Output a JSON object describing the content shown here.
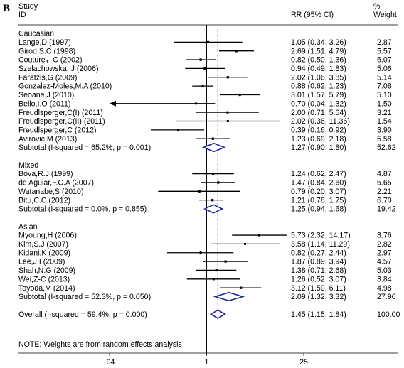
{
  "panel_label": "B",
  "chart_data": {
    "type": "forest",
    "header": {
      "study": "Study",
      "id": "ID",
      "estimate": "RR (95% CI)",
      "weight_pct": "%",
      "weight": "Weight"
    },
    "x_scale": "log",
    "x_ticks": [
      {
        "value": 0.04,
        "label": ".04"
      },
      {
        "value": 1,
        "label": "1"
      },
      {
        "value": 25,
        "label": "25"
      }
    ],
    "null_line": 1,
    "overall_line": 1.45,
    "rows": [
      {
        "kind": "header",
        "label": "Caucasian"
      },
      {
        "kind": "study",
        "label": "Lange,D (1997)",
        "est": 1.05,
        "lo": 0.34,
        "hi": 3.26,
        "weight": 2.87,
        "text": "1.05 (0.34, 3.26)",
        "wtext": "2.87"
      },
      {
        "kind": "study",
        "label": "Girod,S.C (1998)",
        "est": 2.69,
        "lo": 1.51,
        "hi": 4.79,
        "weight": 5.57,
        "text": "2.69 (1.51, 4.79)",
        "wtext": "5.57"
      },
      {
        "kind": "study",
        "label": "Couture，C (2002)",
        "est": 0.82,
        "lo": 0.5,
        "hi": 1.36,
        "weight": 6.07,
        "text": "0.82 (0.50, 1.36)",
        "wtext": "6.07"
      },
      {
        "kind": "study",
        "label": "Szelachowska, J (2006)",
        "est": 0.94,
        "lo": 0.49,
        "hi": 1.83,
        "weight": 5.06,
        "text": "0.94 (0.49, 1.83)",
        "wtext": "5.06"
      },
      {
        "kind": "study",
        "label": "Faratzis,G (2009)",
        "est": 2.02,
        "lo": 1.06,
        "hi": 3.85,
        "weight": 5.14,
        "text": "2.02 (1.06, 3.85)",
        "wtext": "5.14"
      },
      {
        "kind": "study",
        "label": "Gonzalez-Moles,M.A (2010)",
        "est": 0.88,
        "lo": 0.62,
        "hi": 1.23,
        "weight": 7.08,
        "text": "0.88 (0.62, 1.23)",
        "wtext": "7.08"
      },
      {
        "kind": "study",
        "label": "Seoane,J (2010)",
        "est": 3.01,
        "lo": 1.57,
        "hi": 5.79,
        "weight": 5.1,
        "text": "3.01 (1.57, 5.79)",
        "wtext": "5.10"
      },
      {
        "kind": "study",
        "label": "Bello,I.O (2011)",
        "est": 0.7,
        "lo": 0.04,
        "hi": 1.32,
        "weight": 1.5,
        "arrow_left": true,
        "text": "0.70 (0.04, 1.32)",
        "wtext": "1.50"
      },
      {
        "kind": "study",
        "label": "Freudlsperger,C(I) (2011)",
        "est": 2.0,
        "lo": 0.71,
        "hi": 5.64,
        "weight": 3.21,
        "text": "2.00 (0.71, 5.64)",
        "wtext": "3.21"
      },
      {
        "kind": "study",
        "label": "Freudlsperger,C(II) (2011)",
        "est": 2.02,
        "lo": 0.36,
        "hi": 11.36,
        "weight": 1.54,
        "text": "2.02 (0.36, 11.36)",
        "wtext": "1.54"
      },
      {
        "kind": "study",
        "label": "Freudlsperger,C (2012)",
        "est": 0.39,
        "lo": 0.16,
        "hi": 0.92,
        "weight": 3.9,
        "text": "0.39 (0.16, 0.92)",
        "wtext": "3.90"
      },
      {
        "kind": "study",
        "label": "Avirovic,M (2013)",
        "est": 1.23,
        "lo": 0.69,
        "hi": 2.18,
        "weight": 5.58,
        "text": "1.23 (0.69, 2.18)",
        "wtext": "5.58"
      },
      {
        "kind": "subtotal",
        "label": "Subtotal  (I-squared = 65.2%, p = 0.001)",
        "est": 1.27,
        "lo": 0.9,
        "hi": 1.8,
        "text": "1.27 (0.90, 1.80)",
        "wtext": "52.62"
      },
      {
        "kind": "blank"
      },
      {
        "kind": "header",
        "label": "Mixed"
      },
      {
        "kind": "study",
        "label": "Bova,R.J (1999)",
        "est": 1.24,
        "lo": 0.62,
        "hi": 2.47,
        "weight": 4.87,
        "text": "1.24 (0.62, 2.47)",
        "wtext": "4.87"
      },
      {
        "kind": "study",
        "label": "de Aguiar,F.C.A (2007)",
        "est": 1.47,
        "lo": 0.84,
        "hi": 2.6,
        "weight": 5.65,
        "text": "1.47 (0.84, 2.60)",
        "wtext": "5.65"
      },
      {
        "kind": "study",
        "label": "Watanabe,S (2010)",
        "est": 0.79,
        "lo": 0.2,
        "hi": 3.07,
        "weight": 2.21,
        "text": "0.79 (0.20, 3.07)",
        "wtext": "2.21"
      },
      {
        "kind": "study",
        "label": "Bitu,C.C (2012)",
        "est": 1.21,
        "lo": 0.78,
        "hi": 1.75,
        "weight": 6.7,
        "text": "1.21 (0.78, 1.75)",
        "wtext": "6.70"
      },
      {
        "kind": "subtotal",
        "label": "Subtotal  (I-squared = 0.0%, p = 0.855)",
        "est": 1.25,
        "lo": 0.94,
        "hi": 1.68,
        "text": "1.25 (0.94, 1.68)",
        "wtext": "19.42"
      },
      {
        "kind": "blank"
      },
      {
        "kind": "header",
        "label": "Asian"
      },
      {
        "kind": "study",
        "label": "Myoung,H (2006)",
        "est": 5.73,
        "lo": 2.32,
        "hi": 14.17,
        "weight": 3.76,
        "text": "5.73 (2.32, 14.17)",
        "wtext": "3.76"
      },
      {
        "kind": "study",
        "label": "Kim,S.J (2007)",
        "est": 3.58,
        "lo": 1.14,
        "hi": 11.29,
        "weight": 2.82,
        "text": "3.58 (1.14, 11.29)",
        "wtext": "2.82"
      },
      {
        "kind": "study",
        "label": "Kidani,K (2009)",
        "est": 0.82,
        "lo": 0.27,
        "hi": 2.44,
        "weight": 2.97,
        "text": "0.82 (0.27, 2.44)",
        "wtext": "2.97"
      },
      {
        "kind": "study",
        "label": "Lee,J.I (2009)",
        "est": 1.87,
        "lo": 0.89,
        "hi": 3.94,
        "weight": 4.57,
        "text": "1.87 (0.89, 3.94)",
        "wtext": "4.57"
      },
      {
        "kind": "study",
        "label": "Shah,N.G (2009)",
        "est": 1.38,
        "lo": 0.71,
        "hi": 2.68,
        "weight": 5.03,
        "text": "1.38 (0.71, 2.68)",
        "wtext": "5.03"
      },
      {
        "kind": "study",
        "label": "Wei,Z-C (2013)",
        "est": 1.26,
        "lo": 0.52,
        "hi": 3.07,
        "weight": 3.84,
        "text": "1.26 (0.52, 3.07)",
        "wtext": "3.84"
      },
      {
        "kind": "study",
        "label": "Toyoda,M (2014)",
        "est": 3.12,
        "lo": 1.59,
        "hi": 6.11,
        "weight": 4.98,
        "text": "3.12 (1.59, 6.11)",
        "wtext": "4.98"
      },
      {
        "kind": "subtotal",
        "label": "Subtotal  (I-squared = 52.3%, p = 0.050)",
        "est": 2.09,
        "lo": 1.32,
        "hi": 3.32,
        "text": "2.09 (1.32, 3.32)",
        "wtext": "27.96"
      },
      {
        "kind": "blank"
      },
      {
        "kind": "overall",
        "label": "Overall  (I-squared = 59.4%, p = 0.000)",
        "est": 1.45,
        "lo": 1.15,
        "hi": 1.84,
        "text": "1.45 (1.15, 1.84)",
        "wtext": "100.00"
      }
    ],
    "note": "NOTE: Weights are from random effects analysis",
    "colors": {
      "diamond": "#1f2a9c",
      "null_line": "#000000",
      "overall_line": "#b03040",
      "marks": "#000000"
    }
  }
}
